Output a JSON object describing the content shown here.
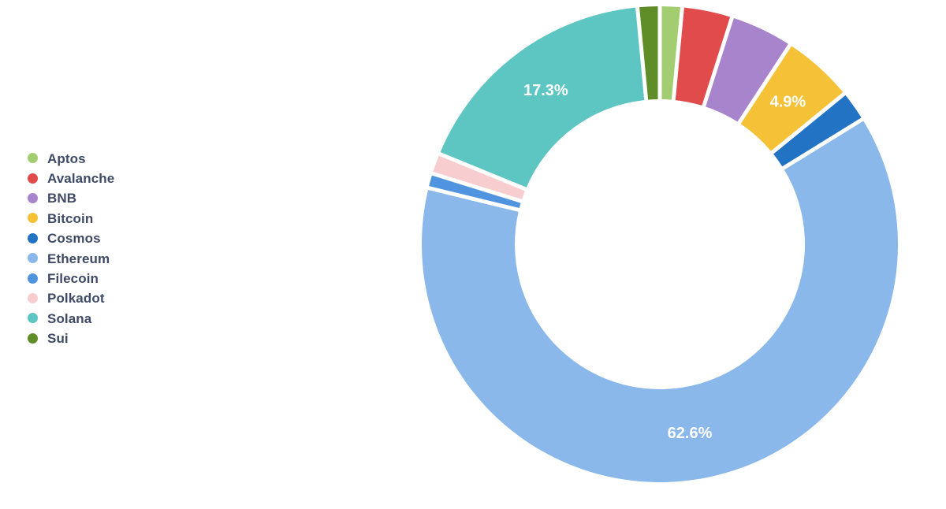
{
  "page": {
    "background_color": "#ffffff",
    "legend_text_color": "#3e4a66",
    "slice_label_color": "#ffffff"
  },
  "chart_data": {
    "type": "pie",
    "subtype": "donut",
    "title": "",
    "legend_position": "left",
    "start_angle_deg": 0,
    "direction": "clockwise",
    "units": "percent",
    "series": [
      {
        "name": "Aptos",
        "value": 1.5,
        "color": "#a2ce71",
        "label": ""
      },
      {
        "name": "Avalanche",
        "value": 3.4,
        "color": "#e14b4b",
        "label": ""
      },
      {
        "name": "BNB",
        "value": 4.3,
        "color": "#a884cc",
        "label": ""
      },
      {
        "name": "Bitcoin",
        "value": 4.9,
        "color": "#f5c136",
        "label": "4.9%"
      },
      {
        "name": "Cosmos",
        "value": 2.1,
        "color": "#2273c4",
        "label": ""
      },
      {
        "name": "Ethereum",
        "value": 62.6,
        "color": "#8ab8ea",
        "label": "62.6%"
      },
      {
        "name": "Filecoin",
        "value": 1.0,
        "color": "#5094df",
        "label": ""
      },
      {
        "name": "Polkadot",
        "value": 1.4,
        "color": "#f8cdd0",
        "label": ""
      },
      {
        "name": "Solana",
        "value": 17.3,
        "color": "#5ec6c2",
        "label": "17.3%"
      },
      {
        "name": "Sui",
        "value": 1.5,
        "color": "#5f8d28",
        "label": ""
      }
    ]
  }
}
